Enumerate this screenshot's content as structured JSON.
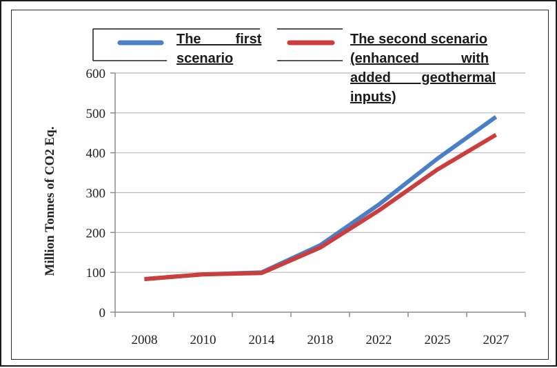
{
  "chart_data": {
    "type": "line",
    "title": "",
    "xlabel": "",
    "ylabel": "Million Tonnes of CO2 Eq.",
    "categories": [
      "2008",
      "2010",
      "2014",
      "2018",
      "2022",
      "2025",
      "2027"
    ],
    "ylim": [
      0,
      600
    ],
    "yticks": [
      "0",
      "100",
      "200",
      "300",
      "400",
      "500",
      "600"
    ],
    "grid": "horizontal",
    "legend_position": "top",
    "series": [
      {
        "name": "The first scenario",
        "legend_lines": [
          "The         first",
          "scenario"
        ],
        "color": "#4a7fc8",
        "values": [
          83,
          95,
          100,
          168,
          270,
          385,
          490
        ]
      },
      {
        "name": "The second scenario (enhanced with added geothermal inputs)",
        "legend_lines": [
          "The second scenario",
          "(enhanced           with",
          "added        geothermal",
          "inputs)"
        ],
        "color": "#cc3d3d",
        "values": [
          83,
          95,
          98,
          162,
          255,
          358,
          445
        ]
      }
    ]
  }
}
